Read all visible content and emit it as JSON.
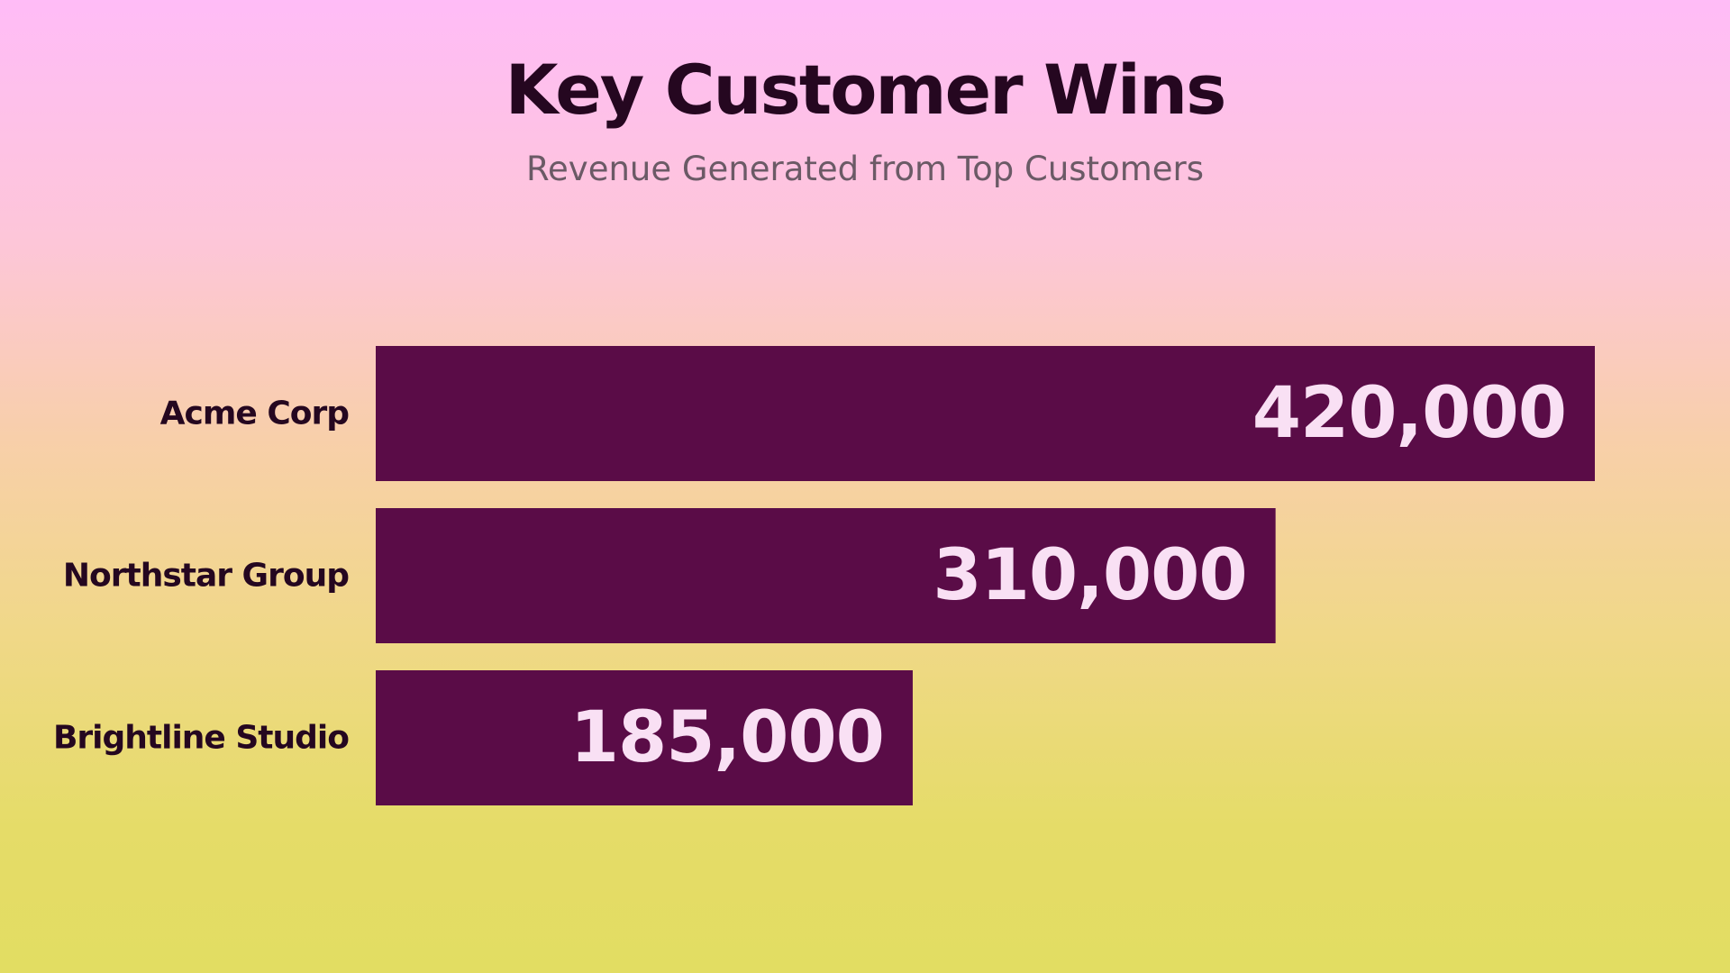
{
  "header": {
    "title": "Key Customer Wins",
    "subtitle": "Revenue Generated from Top Customers"
  },
  "colors": {
    "bar": "#5a0c47",
    "value_inside": "#f9e0f4",
    "value_outside": "#250720"
  },
  "chart_data": {
    "type": "bar",
    "orientation": "horizontal",
    "title": "Key Customer Wins",
    "subtitle": "Revenue Generated from Top Customers",
    "categories": [
      "Acme Corp",
      "Northstar Group",
      "Brightline Studio"
    ],
    "values": [
      420000,
      310000,
      185000
    ],
    "value_labels": [
      "420,000",
      "310,000",
      "185,000"
    ],
    "xlim": [
      0,
      420000
    ],
    "grid": false,
    "legend": "none"
  }
}
